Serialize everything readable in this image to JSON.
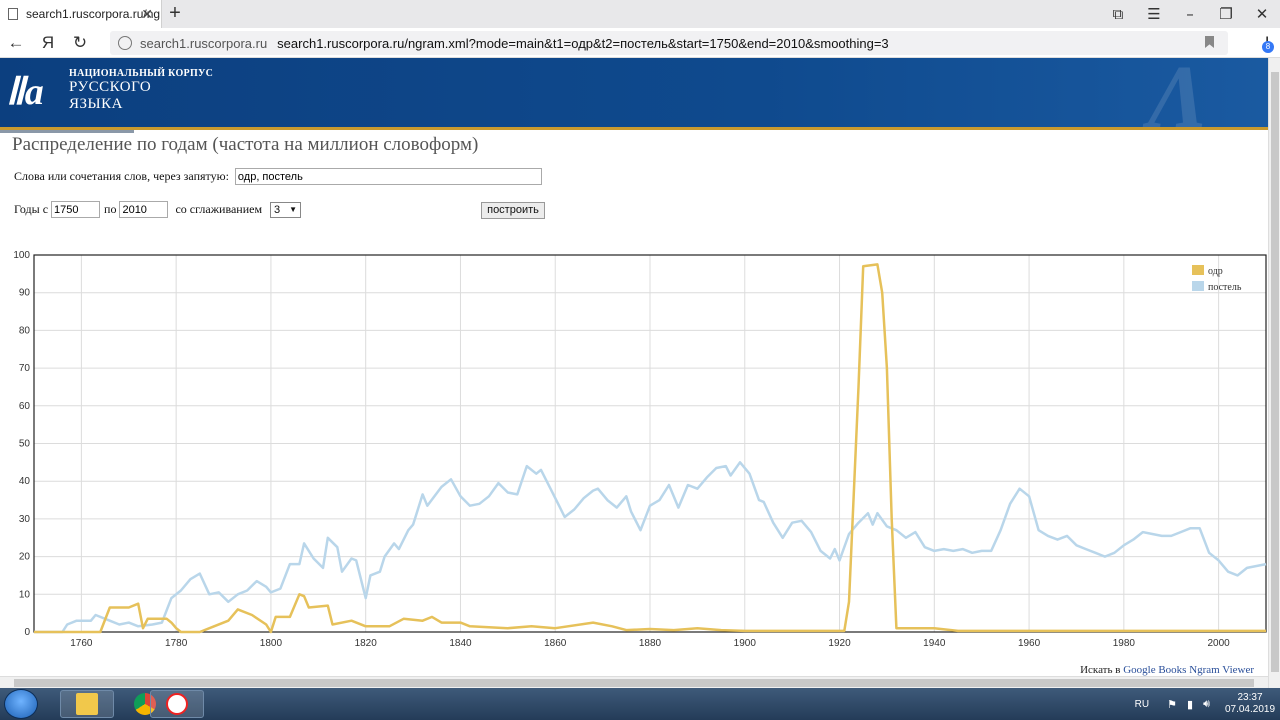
{
  "browser": {
    "tab_title": "search1.ruscorpora.ru/ng",
    "tab_close": "✕",
    "new_tab": "+",
    "domain": "search1.ruscorpora.ru",
    "url": "search1.ruscorpora.ru/ngram.xml?mode=main&t1=одр&t2=постель&start=1750&end=2010&smoothing=3",
    "yandex_logo": "Я",
    "downloads_badge": "8"
  },
  "site": {
    "logo_small": "НАЦИОНАЛЬНЫЙ КОРПУС",
    "logo_line2": "РУССКОГО",
    "logo_line3": "ЯЗЫКА"
  },
  "form": {
    "page_title": "Распределение по годам (частота на миллион словоформ)",
    "words_label": "Слова или сочетания слов, через запятую:",
    "words_value": "одр, постель",
    "years_from_label": "Годы с",
    "year_from": "1750",
    "years_to_label": "по",
    "year_to": "2010",
    "smoothing_label": "со сглаживанием",
    "smoothing_value": "3",
    "build_button": "построить"
  },
  "footer": {
    "search_in": "Искать в",
    "gbooks_link": "Google Books Ngram Viewer"
  },
  "taskbar": {
    "lang": "RU",
    "time": "23:37",
    "date": "07.04.2019"
  },
  "colors": {
    "odr": "#e6c15a",
    "postel": "#b9d6ea"
  },
  "chart_data": {
    "type": "line",
    "title": "",
    "xlabel": "",
    "ylabel": "",
    "xlim": [
      1750,
      2010
    ],
    "ylim": [
      0,
      100
    ],
    "x_ticks": [
      1760,
      1780,
      1800,
      1820,
      1840,
      1860,
      1880,
      1900,
      1920,
      1940,
      1960,
      1980,
      2000
    ],
    "y_ticks": [
      0,
      10,
      20,
      30,
      40,
      50,
      60,
      70,
      80,
      90,
      100
    ],
    "legend_position": "top-right",
    "series": [
      {
        "name": "одр",
        "points": [
          [
            1750,
            0
          ],
          [
            1756,
            0
          ],
          [
            1764,
            0
          ],
          [
            1766,
            6.5
          ],
          [
            1770,
            6.5
          ],
          [
            1772,
            7.5
          ],
          [
            1773,
            1
          ],
          [
            1774,
            3.5
          ],
          [
            1778,
            3.5
          ],
          [
            1779,
            2.5
          ],
          [
            1780,
            1
          ],
          [
            1781,
            0
          ],
          [
            1785,
            0
          ],
          [
            1788,
            1.5
          ],
          [
            1791,
            3
          ],
          [
            1793,
            6
          ],
          [
            1796,
            4.5
          ],
          [
            1799,
            2
          ],
          [
            1800,
            0
          ],
          [
            1801,
            4
          ],
          [
            1804,
            4
          ],
          [
            1806,
            10
          ],
          [
            1807,
            9.5
          ],
          [
            1808,
            6.5
          ],
          [
            1812,
            7
          ],
          [
            1813,
            2
          ],
          [
            1817,
            3
          ],
          [
            1820,
            1.5
          ],
          [
            1825,
            1.5
          ],
          [
            1828,
            3.5
          ],
          [
            1832,
            3
          ],
          [
            1834,
            4
          ],
          [
            1836,
            2.5
          ],
          [
            1840,
            2.5
          ],
          [
            1842,
            1.5
          ],
          [
            1850,
            1
          ],
          [
            1855,
            1.5
          ],
          [
            1860,
            1
          ],
          [
            1868,
            2.5
          ],
          [
            1872,
            1.5
          ],
          [
            1875,
            0.5
          ],
          [
            1880,
            0.8
          ],
          [
            1885,
            0.5
          ],
          [
            1890,
            1
          ],
          [
            1895,
            0.5
          ],
          [
            1900,
            0.3
          ],
          [
            1905,
            0.3
          ],
          [
            1915,
            0.3
          ],
          [
            1921,
            0.3
          ],
          [
            1922,
            8
          ],
          [
            1924,
            65
          ],
          [
            1925,
            97
          ],
          [
            1928,
            97.5
          ],
          [
            1929,
            90
          ],
          [
            1930,
            70
          ],
          [
            1931,
            30
          ],
          [
            1932,
            1
          ],
          [
            1940,
            1
          ],
          [
            1945,
            0.3
          ],
          [
            1960,
            0.3
          ],
          [
            1980,
            0.3
          ],
          [
            1990,
            0.3
          ],
          [
            2000,
            0.3
          ],
          [
            2010,
            0.3
          ]
        ]
      },
      {
        "name": "постель",
        "points": [
          [
            1750,
            0
          ],
          [
            1756,
            0
          ],
          [
            1757,
            2
          ],
          [
            1759,
            3
          ],
          [
            1762,
            3
          ],
          [
            1763,
            4.5
          ],
          [
            1766,
            3
          ],
          [
            1768,
            2
          ],
          [
            1770,
            2.5
          ],
          [
            1772,
            1.5
          ],
          [
            1775,
            2
          ],
          [
            1777,
            2.5
          ],
          [
            1779,
            9
          ],
          [
            1781,
            11
          ],
          [
            1783,
            14
          ],
          [
            1785,
            15.5
          ],
          [
            1787,
            10
          ],
          [
            1789,
            10.5
          ],
          [
            1791,
            8
          ],
          [
            1793,
            10
          ],
          [
            1795,
            11
          ],
          [
            1797,
            13.5
          ],
          [
            1799,
            12
          ],
          [
            1800,
            10.5
          ],
          [
            1802,
            11.5
          ],
          [
            1804,
            18
          ],
          [
            1806,
            18
          ],
          [
            1807,
            23.5
          ],
          [
            1809,
            19.5
          ],
          [
            1811,
            17
          ],
          [
            1812,
            25
          ],
          [
            1814,
            22.5
          ],
          [
            1815,
            16
          ],
          [
            1817,
            19.5
          ],
          [
            1818,
            19
          ],
          [
            1820,
            9
          ],
          [
            1821,
            15
          ],
          [
            1823,
            16
          ],
          [
            1824,
            20
          ],
          [
            1826,
            23.5
          ],
          [
            1827,
            22
          ],
          [
            1829,
            27
          ],
          [
            1830,
            28.5
          ],
          [
            1832,
            36.5
          ],
          [
            1833,
            33.5
          ],
          [
            1836,
            38.5
          ],
          [
            1838,
            40.5
          ],
          [
            1840,
            36
          ],
          [
            1842,
            33.5
          ],
          [
            1844,
            34
          ],
          [
            1846,
            36
          ],
          [
            1848,
            39.5
          ],
          [
            1850,
            37
          ],
          [
            1852,
            36.5
          ],
          [
            1854,
            44
          ],
          [
            1856,
            42
          ],
          [
            1857,
            43
          ],
          [
            1859,
            38
          ],
          [
            1861,
            33
          ],
          [
            1862,
            30.5
          ],
          [
            1864,
            32.5
          ],
          [
            1866,
            35.5
          ],
          [
            1868,
            37.5
          ],
          [
            1869,
            38
          ],
          [
            1871,
            35
          ],
          [
            1873,
            33
          ],
          [
            1875,
            36
          ],
          [
            1876,
            32
          ],
          [
            1878,
            27
          ],
          [
            1880,
            33.5
          ],
          [
            1882,
            35
          ],
          [
            1884,
            39
          ],
          [
            1886,
            33
          ],
          [
            1888,
            39
          ],
          [
            1890,
            38
          ],
          [
            1892,
            41
          ],
          [
            1894,
            43.5
          ],
          [
            1896,
            44
          ],
          [
            1897,
            41.5
          ],
          [
            1899,
            45
          ],
          [
            1901,
            42
          ],
          [
            1903,
            35
          ],
          [
            1904,
            34.5
          ],
          [
            1906,
            29
          ],
          [
            1908,
            25
          ],
          [
            1910,
            29
          ],
          [
            1912,
            29.5
          ],
          [
            1914,
            26.5
          ],
          [
            1916,
            21.5
          ],
          [
            1918,
            19.5
          ],
          [
            1919,
            22
          ],
          [
            1920,
            19
          ],
          [
            1922,
            26
          ],
          [
            1924,
            29
          ],
          [
            1926,
            31.5
          ],
          [
            1927,
            28.5
          ],
          [
            1928,
            31.5
          ],
          [
            1930,
            28
          ],
          [
            1932,
            27
          ],
          [
            1934,
            25
          ],
          [
            1936,
            26.5
          ],
          [
            1938,
            22.5
          ],
          [
            1940,
            21.5
          ],
          [
            1942,
            22
          ],
          [
            1944,
            21.5
          ],
          [
            1946,
            22
          ],
          [
            1948,
            21
          ],
          [
            1950,
            21.5
          ],
          [
            1952,
            21.5
          ],
          [
            1954,
            27
          ],
          [
            1956,
            34
          ],
          [
            1958,
            38
          ],
          [
            1960,
            36
          ],
          [
            1962,
            27
          ],
          [
            1964,
            25.5
          ],
          [
            1966,
            24.5
          ],
          [
            1968,
            25.5
          ],
          [
            1970,
            23
          ],
          [
            1972,
            22
          ],
          [
            1974,
            21
          ],
          [
            1976,
            20
          ],
          [
            1978,
            21
          ],
          [
            1980,
            23
          ],
          [
            1982,
            24.5
          ],
          [
            1984,
            26.5
          ],
          [
            1986,
            26
          ],
          [
            1988,
            25.5
          ],
          [
            1990,
            25.5
          ],
          [
            1992,
            26.5
          ],
          [
            1994,
            27.5
          ],
          [
            1996,
            27.5
          ],
          [
            1998,
            21
          ],
          [
            2000,
            19
          ],
          [
            2002,
            16
          ],
          [
            2004,
            15
          ],
          [
            2006,
            17
          ],
          [
            2008,
            17.5
          ],
          [
            2010,
            18
          ]
        ]
      }
    ]
  }
}
